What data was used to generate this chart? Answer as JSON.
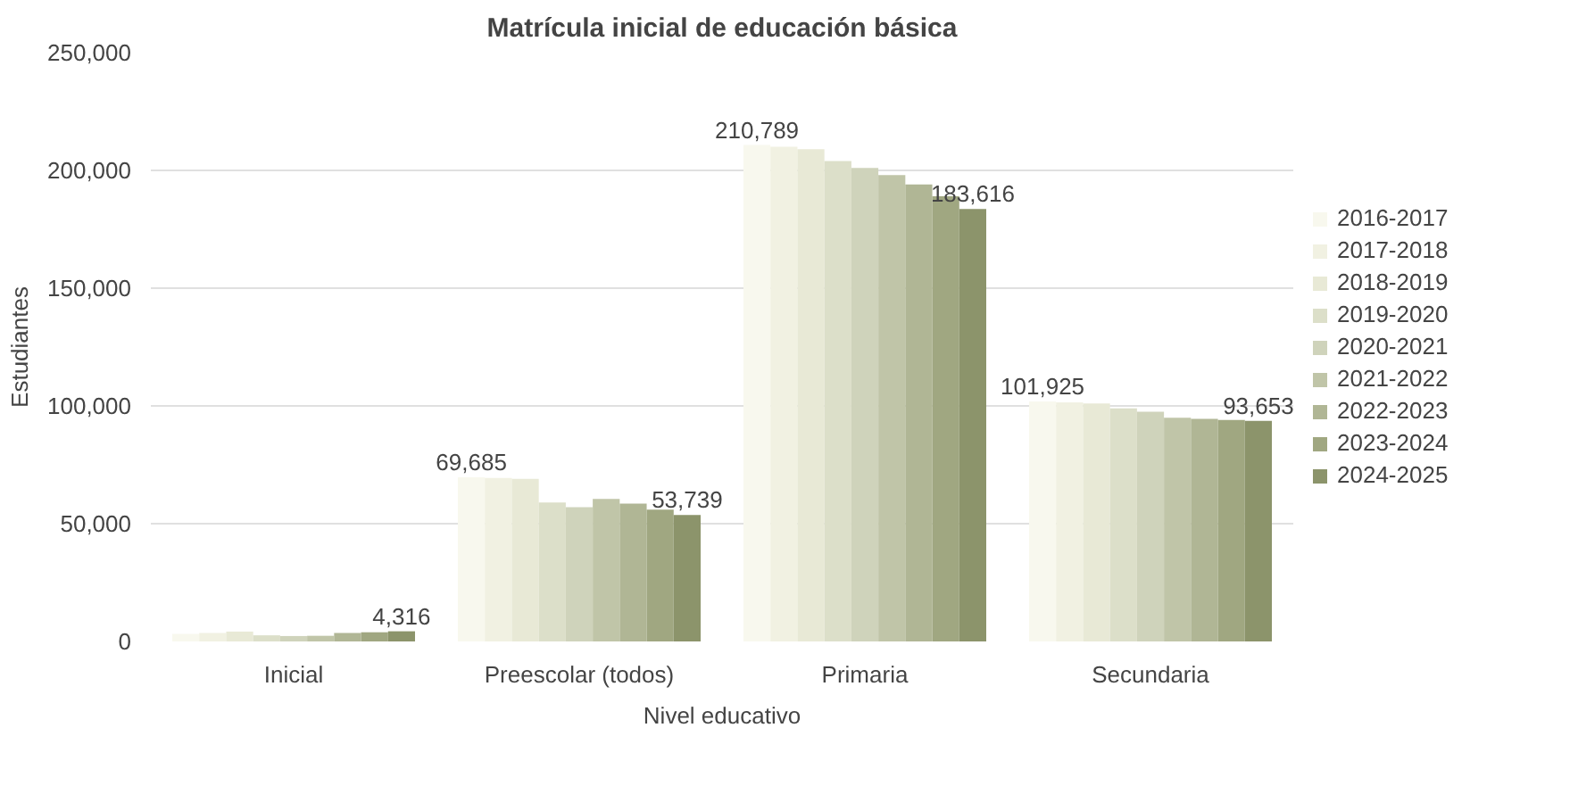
{
  "chart_data": {
    "type": "bar",
    "title": "Matrícula inicial de educación básica",
    "xlabel": "Nivel educativo",
    "ylabel": "Estudiantes",
    "categories": [
      "Inicial",
      "Preescolar (todos)",
      "Primaria",
      "Secundaria"
    ],
    "ylim": [
      0,
      250000
    ],
    "yticks": [
      {
        "value": 0,
        "label": "0"
      },
      {
        "value": 50000,
        "label": "50,000"
      },
      {
        "value": 100000,
        "label": "100,000"
      },
      {
        "value": 150000,
        "label": "150,000"
      },
      {
        "value": 200000,
        "label": "200,000"
      },
      {
        "value": 250000,
        "label": "250,000"
      }
    ],
    "grid": "y",
    "legend": "right",
    "series": [
      {
        "name": "2016-2017",
        "color": "#f8f8ee",
        "values": [
          3200,
          69685,
          210789,
          101925
        ],
        "value_labels": [
          null,
          "69,685",
          "210,789",
          "101,925"
        ]
      },
      {
        "name": "2017-2018",
        "color": "#f1f1e2",
        "values": [
          3600,
          69400,
          210000,
          101500
        ]
      },
      {
        "name": "2018-2019",
        "color": "#e8e9d6",
        "values": [
          4200,
          69000,
          209000,
          101000
        ]
      },
      {
        "name": "2019-2020",
        "color": "#dcdfc9",
        "values": [
          2600,
          59000,
          204000,
          99000
        ]
      },
      {
        "name": "2020-2021",
        "color": "#cfd3bb",
        "values": [
          2300,
          57000,
          201000,
          97500
        ]
      },
      {
        "name": "2021-2022",
        "color": "#c0c5a8",
        "values": [
          2400,
          60500,
          198000,
          95000
        ]
      },
      {
        "name": "2022-2023",
        "color": "#b0b695",
        "values": [
          3600,
          58500,
          194000,
          94500
        ]
      },
      {
        "name": "2023-2024",
        "color": "#a0a781",
        "values": [
          3900,
          56000,
          189000,
          94000
        ]
      },
      {
        "name": "2024-2025",
        "color": "#8c946b",
        "values": [
          4316,
          53739,
          183616,
          93653
        ],
        "value_labels": [
          "4,316",
          "53,739",
          "183,616",
          "93,653"
        ]
      }
    ]
  }
}
